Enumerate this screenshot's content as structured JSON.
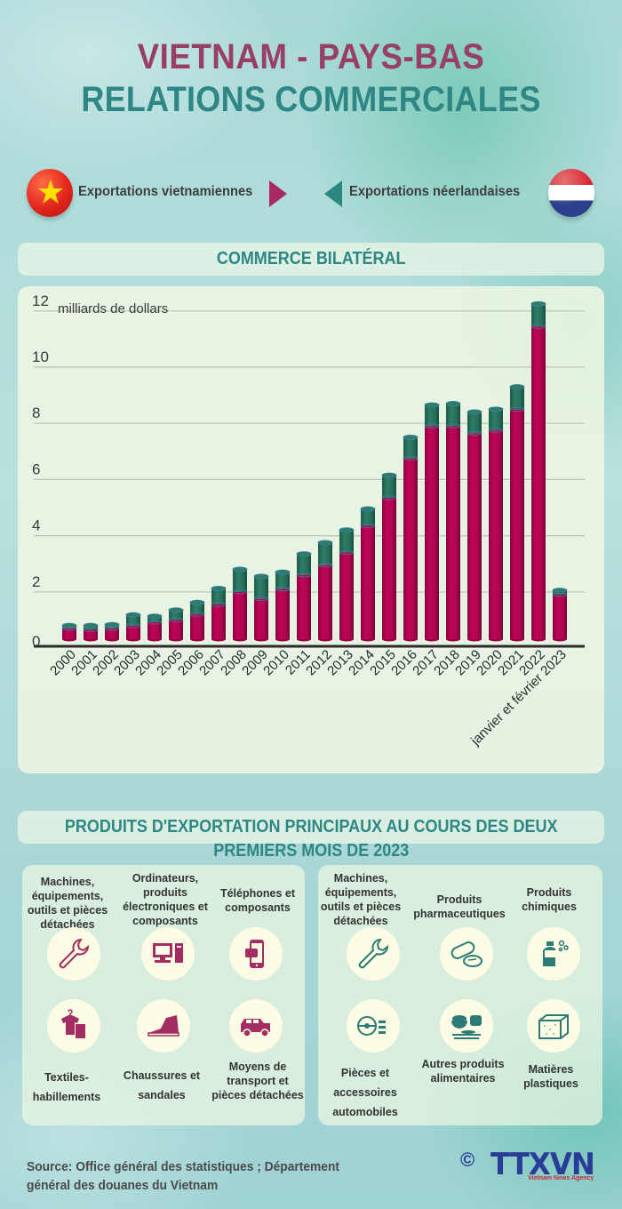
{
  "header": {
    "title_line1": "VIETNAM - PAYS-BAS",
    "title_line2": "RELATIONS COMMERCIALES"
  },
  "legend": {
    "vietnam_label": "Exportations vietnamiennes",
    "netherlands_label": "Exportations néerlandaises",
    "colors": {
      "vietnam": "#b0044f",
      "netherlands": "#26705c"
    }
  },
  "sections": {
    "bilateral": "COMMERCE BILATÉRAL",
    "products_line1": "PRODUITS D'EXPORTATION PRINCIPAUX AU COURS DES DEUX",
    "products_line2": "PREMIERS MOIS DE 2023"
  },
  "chart_data": {
    "type": "bar",
    "stacked": true,
    "title": "COMMERCE BILATÉRAL",
    "ylabel": "milliards de dollars",
    "xlabel": "",
    "ylim": [
      0,
      12
    ],
    "yticks": [
      0,
      2,
      4,
      6,
      8,
      10,
      12
    ],
    "grid": true,
    "categories": [
      "2000",
      "2001",
      "2002",
      "2003",
      "2004",
      "2005",
      "2006",
      "2007",
      "2008",
      "2009",
      "2010",
      "2011",
      "2012",
      "2013",
      "2014",
      "2015",
      "2016",
      "2017",
      "2018",
      "2019",
      "2020",
      "2021",
      "2022",
      "janvier et février 2023"
    ],
    "series": [
      {
        "name": "Exportations vietnamiennes",
        "color": "#b0044f",
        "values": [
          0.7,
          0.65,
          0.7,
          0.8,
          0.92,
          1.0,
          1.2,
          1.55,
          2.0,
          1.75,
          2.1,
          2.6,
          2.95,
          3.4,
          4.35,
          5.35,
          6.75,
          7.9,
          7.9,
          7.65,
          7.75,
          8.5,
          11.45,
          1.9
        ]
      },
      {
        "name": "Exportations néerlandaises",
        "color": "#26705c",
        "values": [
          0.1,
          0.15,
          0.13,
          0.38,
          0.21,
          0.35,
          0.42,
          0.57,
          0.8,
          0.8,
          0.6,
          0.75,
          0.8,
          0.8,
          0.6,
          0.8,
          0.75,
          0.75,
          0.8,
          0.75,
          0.75,
          0.8,
          0.8,
          0.15
        ]
      }
    ]
  },
  "products": {
    "vietnam": [
      {
        "label": "Machines, équipements, outils et pièces détachées",
        "icon": "wrench-icon"
      },
      {
        "label": "Ordinateurs, produits électroniques et composants",
        "icon": "computer-icon"
      },
      {
        "label": "Téléphones et composants",
        "icon": "phone-icon"
      },
      {
        "label": "Textiles-habillements",
        "icon": "clothing-icon"
      },
      {
        "label": "Chaussures et sandales",
        "icon": "shoe-icon"
      },
      {
        "label": "Moyens de transport et pièces détachées",
        "icon": "vehicle-icon"
      }
    ],
    "netherlands": [
      {
        "label": "Machines, équipements, outils et pièces détachées",
        "icon": "wrench-icon"
      },
      {
        "label": "Produits pharmaceutiques",
        "icon": "pills-icon"
      },
      {
        "label": "Produits chimiques",
        "icon": "chemical-bottle-icon"
      },
      {
        "label": "Pièces et accessoires automobiles",
        "icon": "car-dashboard-icon"
      },
      {
        "label": "Autres produits alimentaires",
        "icon": "food-icon"
      },
      {
        "label": "Matières plastiques",
        "icon": "plastic-block-icon"
      }
    ]
  },
  "footer": {
    "source_line1": "Source: Office général des statistiques ; Département",
    "source_line2": "général des douanes du Vietnam",
    "copyright": "©",
    "logo": "TTXVN",
    "agency": "Vietnam News Agency"
  }
}
